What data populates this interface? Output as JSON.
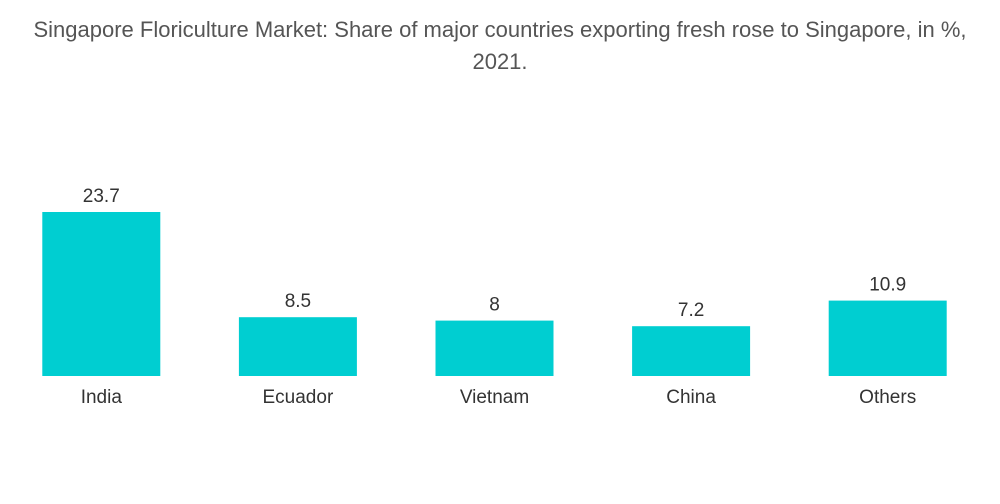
{
  "chart_data": {
    "type": "bar",
    "title": "Singapore Floriculture Market: Share of major countries exporting fresh rose to Singapore, in %, 2021.",
    "categories": [
      "India",
      "Ecuador",
      "Vietnam",
      "China",
      "Others"
    ],
    "values": [
      23.7,
      8.5,
      8,
      7.2,
      10.9
    ],
    "value_labels": [
      "23.7",
      "8.5",
      "8",
      "7.2",
      "10.9"
    ],
    "xlabel": "",
    "ylabel": "",
    "ylim": [
      0,
      23.7
    ],
    "grid": false,
    "legend": "none",
    "bar_color": "#00CED1"
  }
}
